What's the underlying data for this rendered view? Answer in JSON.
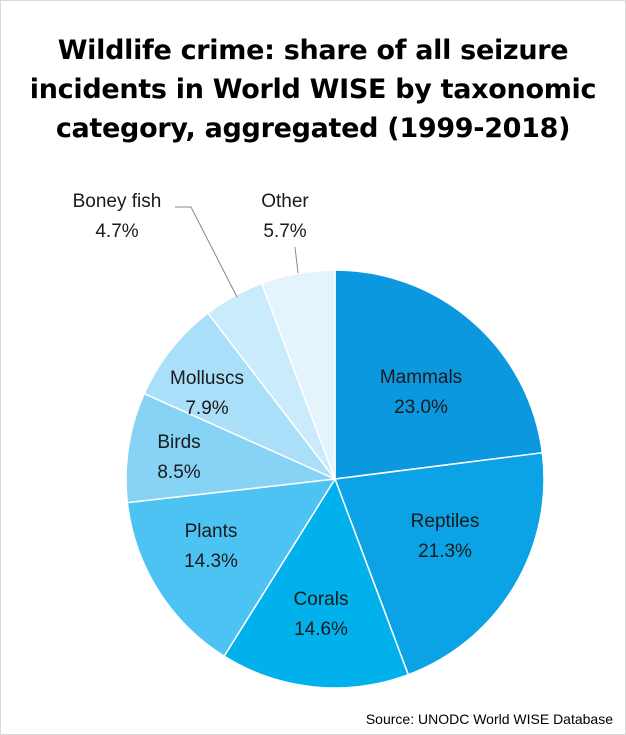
{
  "chart_data": {
    "type": "pie",
    "title_lines": [
      "Wildlife crime: share of all seizure",
      "incidents in World WISE by taxonomic",
      "category, aggregated (1999-2018)"
    ],
    "slices": [
      {
        "label": "Mammals",
        "value": 23.0,
        "display": "23.0%",
        "color": "#0b98de"
      },
      {
        "label": "Reptiles",
        "value": 21.3,
        "display": "21.3%",
        "color": "#0ba3e6"
      },
      {
        "label": "Corals",
        "value": 14.6,
        "display": "14.6%",
        "color": "#00b1ec"
      },
      {
        "label": "Plants",
        "value": 14.3,
        "display": "14.3%",
        "color": "#4dc3f3"
      },
      {
        "label": "Birds",
        "value": 8.5,
        "display": "8.5%",
        "color": "#87d3f5"
      },
      {
        "label": "Molluscs",
        "value": 7.9,
        "display": "7.9%",
        "color": "#a9dff8"
      },
      {
        "label": "Boney fish",
        "value": 4.7,
        "display": "4.7%",
        "color": "#c9ebfb"
      },
      {
        "label": "Other",
        "value": 5.7,
        "display": "5.7%",
        "color": "#e4f4fd"
      }
    ],
    "source": "Source: UNODC World WISE Database"
  }
}
